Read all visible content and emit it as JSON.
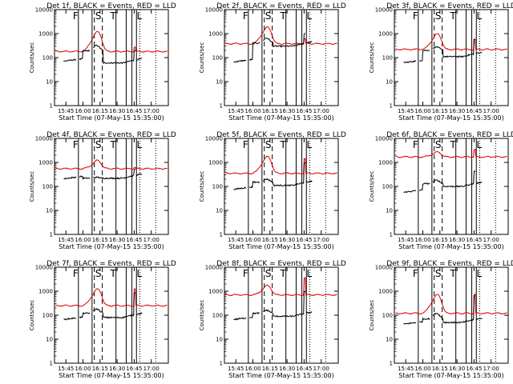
{
  "chart_data": {
    "type": "line",
    "yscale": "log",
    "ylim": [
      1,
      10000
    ],
    "xlim": [
      "15:35",
      "17:15"
    ],
    "ylabel": "Counts/sec",
    "xlabel": "Start Time (07-May-15 15:35:00)",
    "y_ticks": [
      "1",
      "10",
      "100",
      "1000",
      "10000"
    ],
    "x_ticks": [
      "15:45",
      "16:00",
      "16:15",
      "16:30",
      "16:45",
      "17:00"
    ],
    "event_letters": [
      "F",
      "S",
      "T",
      "L"
    ],
    "event_markers": {
      "solid": [
        "15:56",
        "16:08",
        "16:29",
        "16:38",
        "16:43",
        "16:47"
      ],
      "dashed": [
        "16:10",
        "16:17"
      ],
      "dotted": [
        "16:50",
        "17:04"
      ]
    },
    "colors": {
      "events": "#000000",
      "lld": "#e00000"
    },
    "panels": [
      {
        "title": "Det 1f, BLACK = Events, RED = LLD",
        "lld_base": 180,
        "lld_peak": 1150,
        "ev_pre": 75,
        "ev_mid": 190,
        "ev_post": 60,
        "ev_peak": 320,
        "spike": 1.5
      },
      {
        "title": "Det 2f, BLACK = Events, RED = LLD",
        "lld_base": 380,
        "lld_peak": 1800,
        "ev_pre": 70,
        "ev_mid": 400,
        "ev_post": 300,
        "ev_peak": 650,
        "spike": 1.6
      },
      {
        "title": "Det 3f, BLACK = Events, RED = LLD",
        "lld_base": 220,
        "lld_peak": 950,
        "ev_pre": 65,
        "ev_mid": 200,
        "ev_post": 110,
        "ev_peak": 280,
        "spike": 2.5
      },
      {
        "title": "Det 4f, BLACK = Events, RED = LLD",
        "lld_base": 550,
        "lld_peak": 1200,
        "ev_pre": 220,
        "ev_mid": 220,
        "ev_post": 220,
        "ev_peak": 240,
        "spike": 1.1
      },
      {
        "title": "Det 5f, BLACK = Events, RED = LLD",
        "lld_base": 350,
        "lld_peak": 1700,
        "ev_pre": 80,
        "ev_mid": 150,
        "ev_post": 110,
        "ev_peak": 200,
        "spike": 4.0
      },
      {
        "title": "Det 6f, BLACK = Events, RED = LLD",
        "lld_base": 1700,
        "lld_peak": 2700,
        "ev_pre": 60,
        "ev_mid": 130,
        "ev_post": 100,
        "ev_peak": 180,
        "spike": 2.0
      },
      {
        "title": "Det 7f, BLACK = Events, RED = LLD",
        "lld_base": 250,
        "lld_peak": 1200,
        "ev_pre": 70,
        "ev_mid": 120,
        "ev_post": 80,
        "ev_peak": 180,
        "spike": 5.0
      },
      {
        "title": "Det 8f, BLACK = Events, RED = LLD",
        "lld_base": 700,
        "lld_peak": 1700,
        "ev_pre": 70,
        "ev_mid": 120,
        "ev_post": 90,
        "ev_peak": 160,
        "spike": 5.0
      },
      {
        "title": "Det 9f, BLACK = Events, RED = LLD",
        "lld_base": 120,
        "lld_peak": 700,
        "ev_pre": 45,
        "ev_mid": 70,
        "ev_post": 50,
        "ev_peak": 120,
        "spike": 6.0
      }
    ]
  }
}
